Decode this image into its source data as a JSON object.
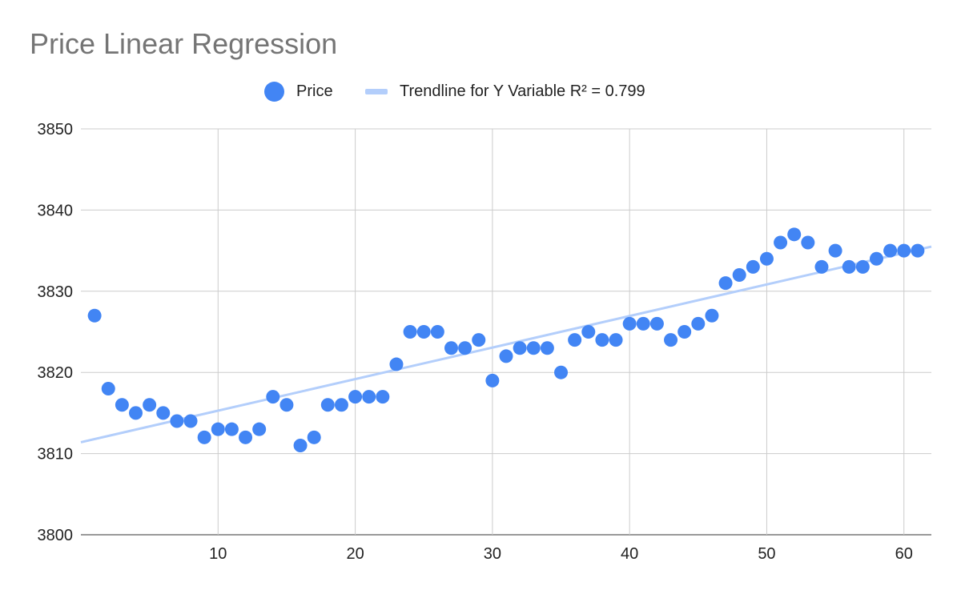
{
  "chart_data": {
    "type": "scatter",
    "title": "Price Linear Regression",
    "xlabel": "",
    "ylabel": "",
    "xlim": [
      0,
      62
    ],
    "ylim": [
      3800,
      3850
    ],
    "x_ticks": [
      10,
      20,
      30,
      40,
      50,
      60
    ],
    "y_ticks": [
      3800,
      3810,
      3820,
      3830,
      3840,
      3850
    ],
    "grid": true,
    "legend_position": "top-center",
    "series": [
      {
        "name": "Price",
        "color": "#4285f4",
        "x": [
          1,
          2,
          3,
          4,
          5,
          6,
          7,
          8,
          9,
          10,
          11,
          12,
          13,
          14,
          15,
          16,
          17,
          18,
          19,
          20,
          21,
          22,
          23,
          24,
          25,
          26,
          27,
          28,
          29,
          30,
          31,
          32,
          33,
          34,
          35,
          36,
          37,
          38,
          39,
          40,
          41,
          42,
          43,
          44,
          45,
          46,
          47,
          48,
          49,
          50,
          51,
          52,
          53,
          54,
          55,
          56,
          57,
          58,
          59,
          60,
          61
        ],
        "values": [
          3827,
          3818,
          3816,
          3815,
          3816,
          3815,
          3814,
          3814,
          3812,
          3813,
          3813,
          3812,
          3813,
          3817,
          3816,
          3811,
          3812,
          3816,
          3816,
          3817,
          3817,
          3817,
          3821,
          3825,
          3825,
          3825,
          3823,
          3823,
          3824,
          3819,
          3822,
          3823,
          3823,
          3823,
          3820,
          3824,
          3825,
          3824,
          3824,
          3826,
          3826,
          3826,
          3824,
          3825,
          3826,
          3827,
          3831,
          3832,
          3833,
          3834,
          3836,
          3837,
          3836,
          3833,
          3835,
          3833,
          3833,
          3834,
          3835,
          3835,
          3835
        ]
      }
    ],
    "trendline": {
      "name": "Trendline for Y Variable R² = 0.799",
      "color": "#b3cefb",
      "x_range": [
        0,
        62
      ],
      "y_values": [
        3811.4,
        3835.5
      ]
    }
  },
  "legend": {
    "price_label": "Price",
    "trend_label": "Trendline for Y Variable R² = 0.799"
  }
}
